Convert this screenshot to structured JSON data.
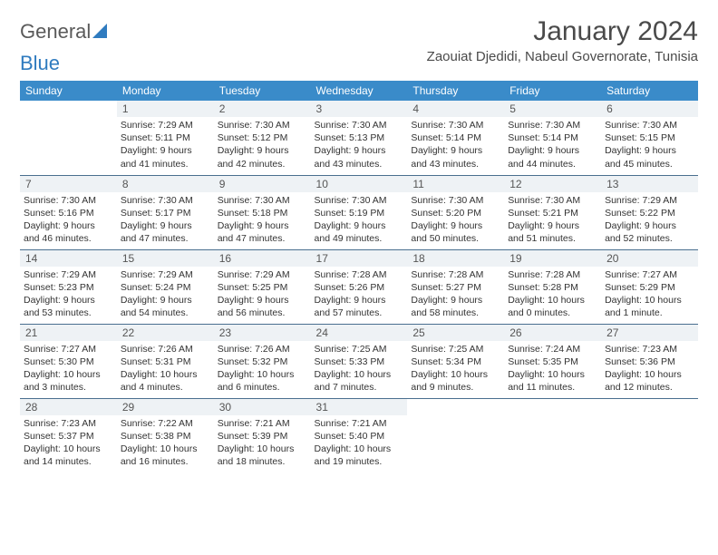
{
  "logo": {
    "part1": "General",
    "part2": "Blue"
  },
  "title": "January 2024",
  "location": "Zaouiat Djedidi, Nabeul Governorate, Tunisia",
  "colors": {
    "header_bg": "#3a8bc9",
    "header_text": "#ffffff",
    "daynum_bg": "#eef2f5",
    "row_border": "#4a6f8f",
    "body_text": "#333333",
    "title_text": "#4a4a4a",
    "logo_gray": "#5a5a5a",
    "logo_blue": "#2f7bbf"
  },
  "weekdays": [
    "Sunday",
    "Monday",
    "Tuesday",
    "Wednesday",
    "Thursday",
    "Friday",
    "Saturday"
  ],
  "weeks": [
    [
      {
        "empty": true
      },
      {
        "num": "1",
        "sunrise": "7:29 AM",
        "sunset": "5:11 PM",
        "daylight": "9 hours and 41 minutes."
      },
      {
        "num": "2",
        "sunrise": "7:30 AM",
        "sunset": "5:12 PM",
        "daylight": "9 hours and 42 minutes."
      },
      {
        "num": "3",
        "sunrise": "7:30 AM",
        "sunset": "5:13 PM",
        "daylight": "9 hours and 43 minutes."
      },
      {
        "num": "4",
        "sunrise": "7:30 AM",
        "sunset": "5:14 PM",
        "daylight": "9 hours and 43 minutes."
      },
      {
        "num": "5",
        "sunrise": "7:30 AM",
        "sunset": "5:14 PM",
        "daylight": "9 hours and 44 minutes."
      },
      {
        "num": "6",
        "sunrise": "7:30 AM",
        "sunset": "5:15 PM",
        "daylight": "9 hours and 45 minutes."
      }
    ],
    [
      {
        "num": "7",
        "sunrise": "7:30 AM",
        "sunset": "5:16 PM",
        "daylight": "9 hours and 46 minutes."
      },
      {
        "num": "8",
        "sunrise": "7:30 AM",
        "sunset": "5:17 PM",
        "daylight": "9 hours and 47 minutes."
      },
      {
        "num": "9",
        "sunrise": "7:30 AM",
        "sunset": "5:18 PM",
        "daylight": "9 hours and 47 minutes."
      },
      {
        "num": "10",
        "sunrise": "7:30 AM",
        "sunset": "5:19 PM",
        "daylight": "9 hours and 49 minutes."
      },
      {
        "num": "11",
        "sunrise": "7:30 AM",
        "sunset": "5:20 PM",
        "daylight": "9 hours and 50 minutes."
      },
      {
        "num": "12",
        "sunrise": "7:30 AM",
        "sunset": "5:21 PM",
        "daylight": "9 hours and 51 minutes."
      },
      {
        "num": "13",
        "sunrise": "7:29 AM",
        "sunset": "5:22 PM",
        "daylight": "9 hours and 52 minutes."
      }
    ],
    [
      {
        "num": "14",
        "sunrise": "7:29 AM",
        "sunset": "5:23 PM",
        "daylight": "9 hours and 53 minutes."
      },
      {
        "num": "15",
        "sunrise": "7:29 AM",
        "sunset": "5:24 PM",
        "daylight": "9 hours and 54 minutes."
      },
      {
        "num": "16",
        "sunrise": "7:29 AM",
        "sunset": "5:25 PM",
        "daylight": "9 hours and 56 minutes."
      },
      {
        "num": "17",
        "sunrise": "7:28 AM",
        "sunset": "5:26 PM",
        "daylight": "9 hours and 57 minutes."
      },
      {
        "num": "18",
        "sunrise": "7:28 AM",
        "sunset": "5:27 PM",
        "daylight": "9 hours and 58 minutes."
      },
      {
        "num": "19",
        "sunrise": "7:28 AM",
        "sunset": "5:28 PM",
        "daylight": "10 hours and 0 minutes."
      },
      {
        "num": "20",
        "sunrise": "7:27 AM",
        "sunset": "5:29 PM",
        "daylight": "10 hours and 1 minute."
      }
    ],
    [
      {
        "num": "21",
        "sunrise": "7:27 AM",
        "sunset": "5:30 PM",
        "daylight": "10 hours and 3 minutes."
      },
      {
        "num": "22",
        "sunrise": "7:26 AM",
        "sunset": "5:31 PM",
        "daylight": "10 hours and 4 minutes."
      },
      {
        "num": "23",
        "sunrise": "7:26 AM",
        "sunset": "5:32 PM",
        "daylight": "10 hours and 6 minutes."
      },
      {
        "num": "24",
        "sunrise": "7:25 AM",
        "sunset": "5:33 PM",
        "daylight": "10 hours and 7 minutes."
      },
      {
        "num": "25",
        "sunrise": "7:25 AM",
        "sunset": "5:34 PM",
        "daylight": "10 hours and 9 minutes."
      },
      {
        "num": "26",
        "sunrise": "7:24 AM",
        "sunset": "5:35 PM",
        "daylight": "10 hours and 11 minutes."
      },
      {
        "num": "27",
        "sunrise": "7:23 AM",
        "sunset": "5:36 PM",
        "daylight": "10 hours and 12 minutes."
      }
    ],
    [
      {
        "num": "28",
        "sunrise": "7:23 AM",
        "sunset": "5:37 PM",
        "daylight": "10 hours and 14 minutes."
      },
      {
        "num": "29",
        "sunrise": "7:22 AM",
        "sunset": "5:38 PM",
        "daylight": "10 hours and 16 minutes."
      },
      {
        "num": "30",
        "sunrise": "7:21 AM",
        "sunset": "5:39 PM",
        "daylight": "10 hours and 18 minutes."
      },
      {
        "num": "31",
        "sunrise": "7:21 AM",
        "sunset": "5:40 PM",
        "daylight": "10 hours and 19 minutes."
      },
      {
        "empty": true
      },
      {
        "empty": true
      },
      {
        "empty": true
      }
    ]
  ],
  "labels": {
    "sunrise": "Sunrise:",
    "sunset": "Sunset:",
    "daylight": "Daylight:"
  }
}
